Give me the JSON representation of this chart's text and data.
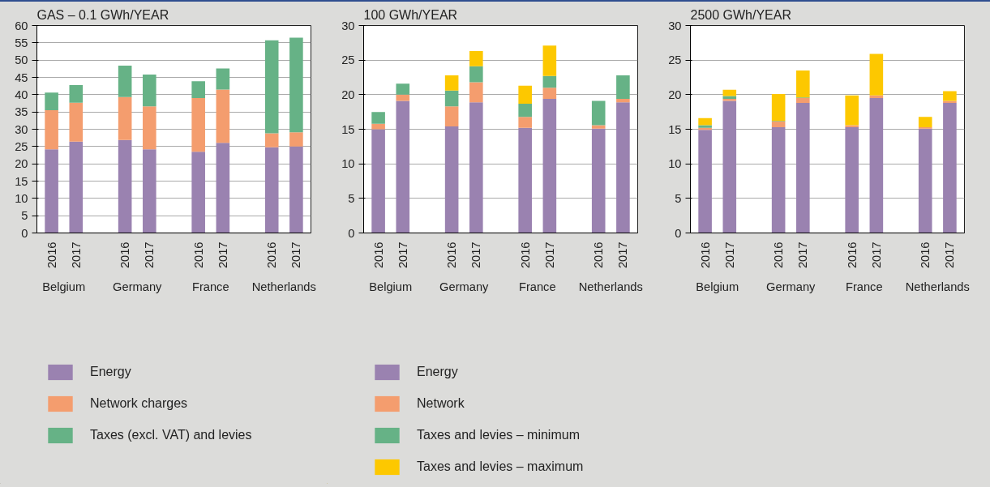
{
  "chart_data": [
    {
      "type": "bar",
      "stacked": true,
      "title": "GAS – 0.1 GWh/YEAR",
      "categories": [
        "2016",
        "2017",
        null,
        "2016",
        "2017",
        null,
        "2016",
        "2017",
        null,
        "2016",
        "2017"
      ],
      "annotations": [
        "Belgium",
        "Germany",
        "France",
        "Netherlands"
      ],
      "series": [
        {
          "name": "Energy",
          "color": "#9a82b0",
          "values": [
            24.2,
            26.4,
            null,
            26.9,
            24.2,
            null,
            23.5,
            26.1,
            null,
            24.8,
            25.0
          ]
        },
        {
          "name": "Network charges",
          "color": "#f49d6e",
          "values": [
            11.3,
            11.3,
            null,
            12.4,
            12.4,
            null,
            15.5,
            15.4,
            null,
            4.0,
            4.1
          ]
        },
        {
          "name": "Taxes (excl. VAT) and levies",
          "color": "#66b286",
          "values": [
            5.1,
            5.1,
            null,
            9.1,
            9.2,
            null,
            4.9,
            6.1,
            null,
            26.9,
            27.4
          ]
        }
      ],
      "ylim": [
        0,
        60
      ],
      "yticks": [
        0,
        5,
        10,
        15,
        20,
        25,
        30,
        35,
        40,
        45,
        50,
        55,
        60
      ],
      "grid": "y",
      "legend": "bottom"
    },
    {
      "type": "bar",
      "stacked": true,
      "title": "100 GWh/YEAR",
      "categories": [
        "2016",
        "2017",
        null,
        "2016",
        "2017",
        null,
        "2016",
        "2017",
        null,
        "2016",
        "2017"
      ],
      "annotations": [
        "Belgium",
        "Germany",
        "France",
        "Netherlands"
      ],
      "series": [
        {
          "name": "Energy",
          "color": "#9a82b0",
          "values": [
            15.0,
            19.1,
            null,
            15.4,
            18.9,
            null,
            15.2,
            19.4,
            null,
            15.1,
            18.9
          ]
        },
        {
          "name": "Network",
          "color": "#f49d6e",
          "values": [
            0.8,
            0.9,
            null,
            2.9,
            2.9,
            null,
            1.6,
            1.6,
            null,
            0.5,
            0.5
          ]
        },
        {
          "name": "Taxes and levies – minimum",
          "color": "#66b286",
          "values": [
            1.7,
            1.6,
            null,
            2.3,
            2.3,
            null,
            1.9,
            1.7,
            null,
            3.5,
            3.4
          ]
        },
        {
          "name": "Taxes and levies – maximum",
          "color": "#fdc800",
          "values": [
            0,
            0,
            null,
            2.2,
            2.2,
            null,
            2.6,
            4.4,
            null,
            0,
            0
          ]
        }
      ],
      "ylim": [
        0,
        30
      ],
      "yticks": [
        0,
        5,
        10,
        15,
        20,
        25,
        30
      ],
      "grid": "y",
      "legend": "bottom"
    },
    {
      "type": "bar",
      "stacked": true,
      "title": "2500 GWh/YEAR",
      "categories": [
        "2016",
        "2017",
        null,
        "2016",
        "2017",
        null,
        "2016",
        "2017",
        null,
        "2016",
        "2017"
      ],
      "annotations": [
        "Belgium",
        "Germany",
        "France",
        "Netherlands"
      ],
      "series": [
        {
          "color": "#9a82b0",
          "values": [
            14.9,
            19.1,
            null,
            15.3,
            18.8,
            null,
            15.3,
            19.5,
            null,
            15.1,
            18.8
          ]
        },
        {
          "color": "#f49d6e",
          "values": [
            0.3,
            0.3,
            null,
            0.8,
            0.7,
            null,
            0.3,
            0.4,
            null,
            0.2,
            0.3
          ]
        },
        {
          "color": "#66b286",
          "values": [
            0.4,
            0.4,
            null,
            0.1,
            0.1,
            null,
            0,
            0,
            null,
            0,
            0
          ]
        },
        {
          "color": "#fdc800",
          "values": [
            1.0,
            0.9,
            null,
            3.9,
            3.9,
            null,
            4.3,
            6.0,
            null,
            1.5,
            1.4
          ]
        }
      ],
      "ylim": [
        0,
        30
      ],
      "yticks": [
        0,
        5,
        10,
        15,
        20,
        25,
        30
      ],
      "grid": "y"
    }
  ]
}
